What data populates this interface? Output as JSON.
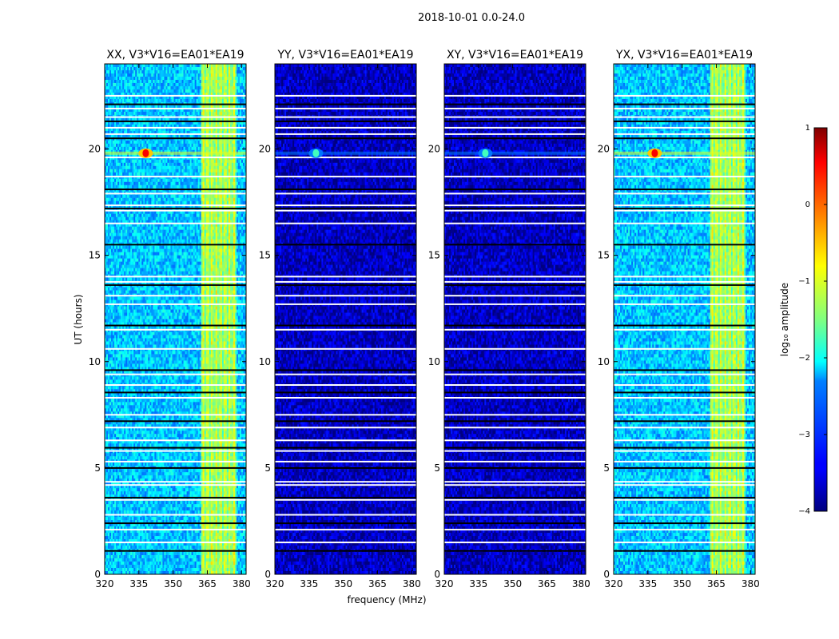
{
  "figure_title": "2018-10-01 0.0-24.0",
  "chart_data": {
    "type": "heatmap",
    "suptitle": "2018-10-01 0.0-24.0",
    "xlabel": "frequency (MHz)",
    "ylabel": "UT (hours)",
    "xlim": [
      320,
      382
    ],
    "ylim": [
      0,
      24
    ],
    "xticks": [
      320,
      335,
      350,
      365,
      380
    ],
    "yticks": [
      0,
      5,
      10,
      15,
      20
    ],
    "panels": [
      {
        "title": "XX, V3*V16=EA01*EA19",
        "base_level": -2.4,
        "rfi_band": [
          362,
          378
        ],
        "rfi_level": -1.3,
        "burst": {
          "freq_mhz": 338,
          "ut_hours": 19.8,
          "peak_log10": 0.4
        }
      },
      {
        "title": "YY, V3*V16=EA01*EA19",
        "base_level": -3.7,
        "rfi_band": null,
        "rfi_level": null,
        "burst": {
          "freq_mhz": 338,
          "ut_hours": 19.8,
          "peak_log10": -1.8
        }
      },
      {
        "title": "XY, V3*V16=EA01*EA19",
        "base_level": -3.7,
        "rfi_band": null,
        "rfi_level": null,
        "burst": {
          "freq_mhz": 338,
          "ut_hours": 19.8,
          "peak_log10": -1.8
        }
      },
      {
        "title": "YX, V3*V16=EA01*EA19",
        "base_level": -2.4,
        "rfi_band": [
          362,
          378
        ],
        "rfi_level": -1.3,
        "burst": {
          "freq_mhz": 338,
          "ut_hours": 19.8,
          "peak_log10": 0.4
        }
      }
    ],
    "flagged_ut_hours": [
      1.1,
      1.5,
      2.1,
      2.4,
      2.8,
      3.5,
      3.6,
      4.2,
      4.35,
      5.0,
      5.3,
      5.8,
      5.95,
      6.3,
      6.9,
      7.2,
      7.5,
      8.3,
      8.55,
      8.9,
      9.4,
      9.6,
      10.6,
      11.5,
      11.7,
      12.7,
      13.1,
      13.6,
      13.75,
      14.0,
      15.5,
      16.5,
      17.1,
      17.2,
      17.35,
      17.9,
      18.1,
      18.7,
      19.6,
      20.5,
      20.7,
      21.0,
      21.3,
      21.5,
      21.9,
      22.1,
      22.5
    ],
    "colorbar": {
      "label": "log₁₀ amplitude",
      "range": [
        -4,
        1
      ],
      "ticks": [
        "1",
        "0",
        "−1",
        "−2",
        "−3",
        "−4"
      ],
      "tick_values": [
        1,
        0,
        -1,
        -2,
        -3,
        -4
      ],
      "colormap": "jet"
    }
  }
}
